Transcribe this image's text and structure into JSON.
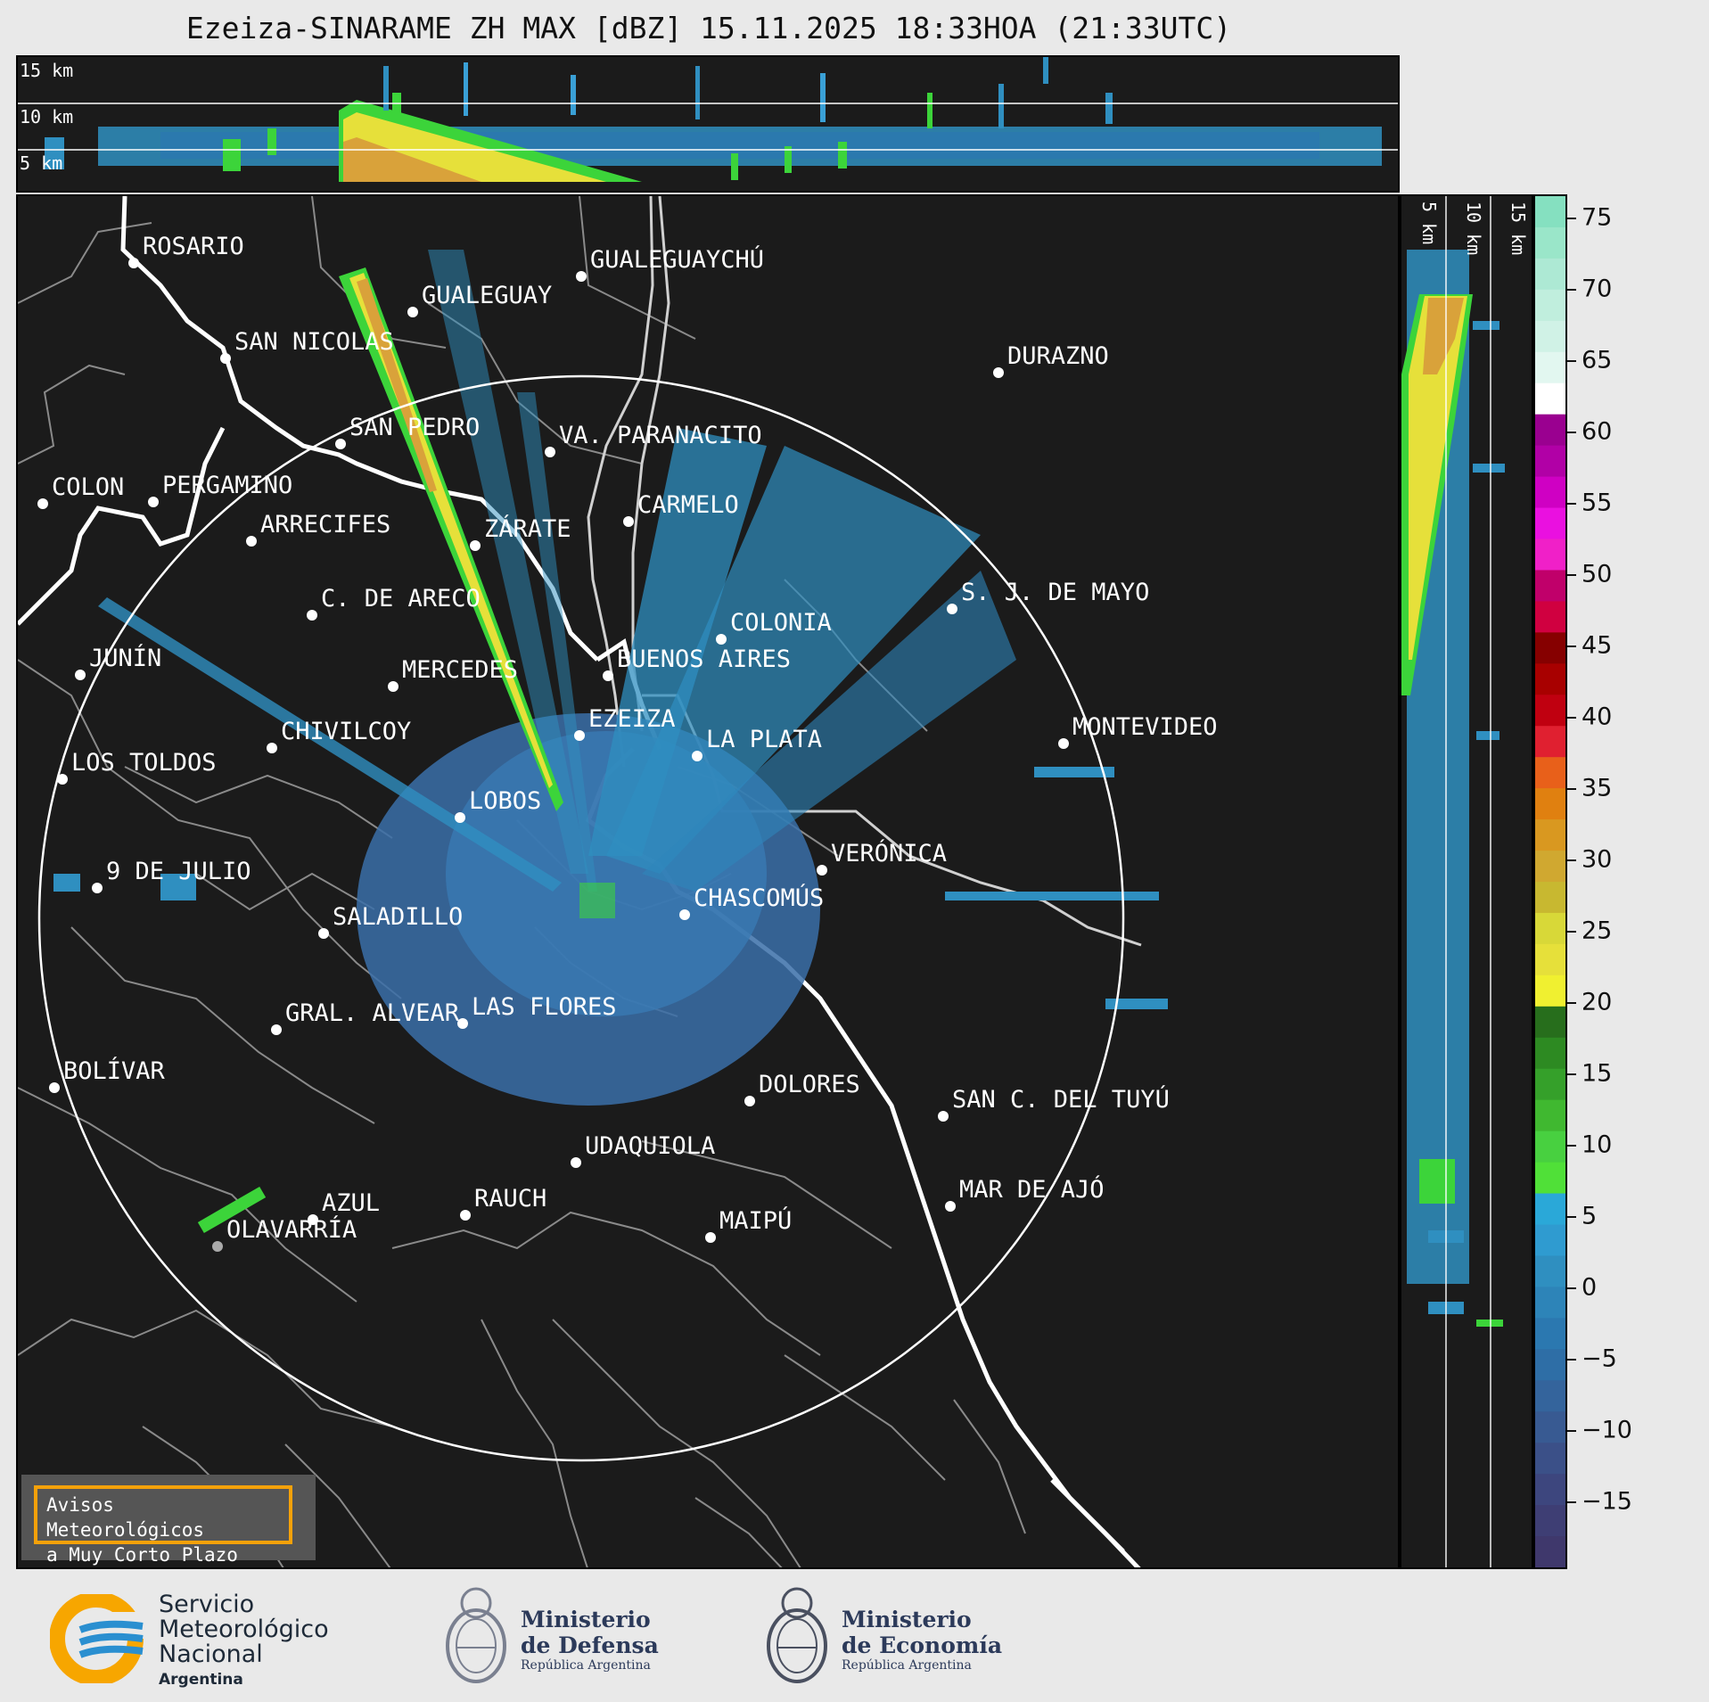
{
  "title": "Ezeiza-SINARAME ZH MAX [dBZ] 15.11.2025 18:33HOA (21:33UTC)",
  "top_panel_levels": [
    "15 km",
    "10 km",
    "5 km"
  ],
  "side_panel_levels": [
    "5 km",
    "10 km",
    "15 km"
  ],
  "colorbar": {
    "ticks": [
      "75",
      "70",
      "65",
      "60",
      "55",
      "50",
      "45",
      "40",
      "35",
      "30",
      "25",
      "20",
      "15",
      "10",
      "5",
      "0",
      "−5",
      "−10",
      "−15"
    ],
    "unit": "dBZ"
  },
  "cities": [
    {
      "name": "ROSARIO"
    },
    {
      "name": "GUALEGUAYCHÚ"
    },
    {
      "name": "GUALEGUAY"
    },
    {
      "name": "SAN NICOLAS"
    },
    {
      "name": "DURAZNO"
    },
    {
      "name": "SAN PEDRO"
    },
    {
      "name": "VA. PARANACITO"
    },
    {
      "name": "COLON"
    },
    {
      "name": "PERGAMINO"
    },
    {
      "name": "CARMELO"
    },
    {
      "name": "ARRECIFES"
    },
    {
      "name": "ZÁRATE"
    },
    {
      "name": "S. J. DE MAYO"
    },
    {
      "name": "C. DE ARECO"
    },
    {
      "name": "COLONIA"
    },
    {
      "name": "JUNÍN"
    },
    {
      "name": "BUENOS AIRES"
    },
    {
      "name": "MERCEDES"
    },
    {
      "name": "EZEIZA"
    },
    {
      "name": "MONTEVIDEO"
    },
    {
      "name": "CHIVILCOY"
    },
    {
      "name": "LA PLATA"
    },
    {
      "name": "LOS TOLDOS"
    },
    {
      "name": "LOBOS"
    },
    {
      "name": "VERÓNICA"
    },
    {
      "name": "9 DE JULIO"
    },
    {
      "name": "CHASCOMÚS"
    },
    {
      "name": "SALADILLO"
    },
    {
      "name": "GRAL. ALVEAR"
    },
    {
      "name": "LAS FLORES"
    },
    {
      "name": "BOLÍVAR"
    },
    {
      "name": "DOLORES"
    },
    {
      "name": "SAN C. DEL TUYÚ"
    },
    {
      "name": "UDAQUIOLA"
    },
    {
      "name": "MAR DE AJÓ"
    },
    {
      "name": "AZUL"
    },
    {
      "name": "RAUCH"
    },
    {
      "name": "OLAVARRÍA"
    },
    {
      "name": "MAIPÚ"
    }
  ],
  "alert_box": {
    "line1": "Avisos Meteorológicos",
    "line2": "a Muy Corto Plazo"
  },
  "footer": {
    "smn": {
      "line1": "Servicio",
      "line2": "Meteorológico",
      "line3": "Nacional",
      "line4": "Argentina"
    },
    "defensa": {
      "line1": "Ministerio",
      "line2": "de Defensa",
      "line3": "República Argentina"
    },
    "economia": {
      "line1": "Ministerio",
      "line2": "de Economía",
      "line3": "República Argentina"
    }
  },
  "colors": {
    "background": "#1b1b1b",
    "range_ring": "#ffffff",
    "coast": "#ffffff",
    "borders": "#8a8a8a",
    "alert_border": "#f5a10a",
    "smn_orange": "#f7a600",
    "smn_blue": "#2a8fd0"
  }
}
